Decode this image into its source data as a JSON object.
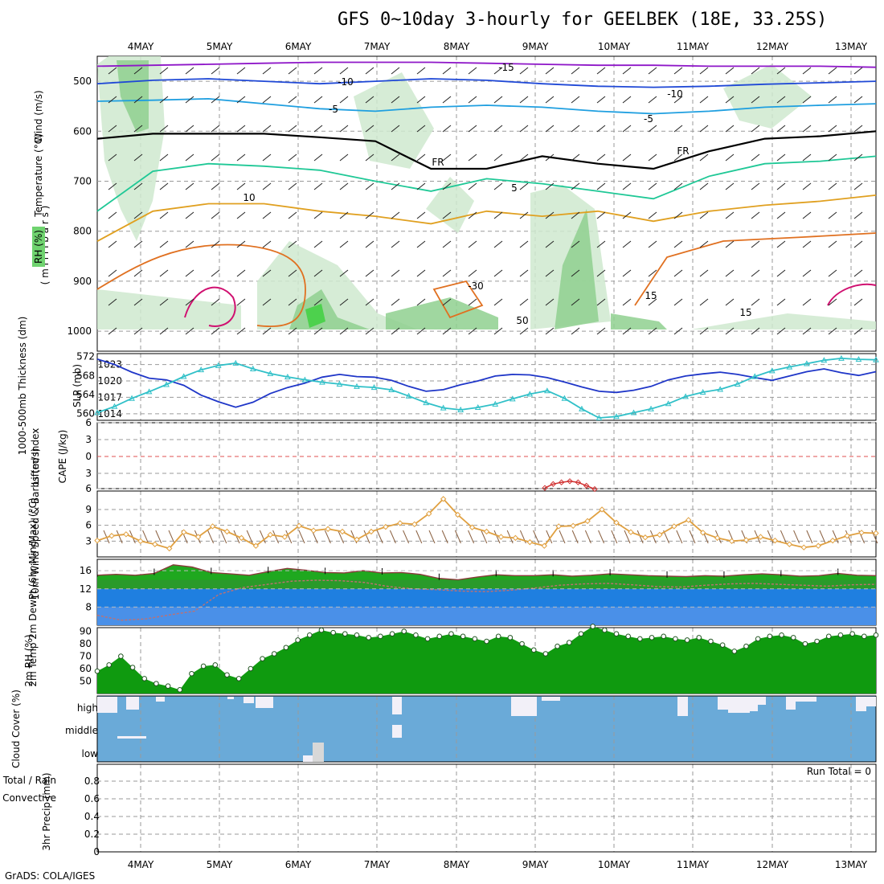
{
  "title": "GFS 0~10day 3-hourly for GEELBEK (18E, 33.25S)",
  "credit": "GrADS: COLA/IGES",
  "colors": {
    "rh_green": "#6fd36f",
    "temp_contours": [
      "#8e16c8",
      "#1f48d6",
      "#1f9fe0",
      "#1fc896",
      "#e0a020",
      "#e07020",
      "#d01070"
    ],
    "slp": "#1f36c8",
    "thickness": "#30c0c8",
    "wind": "#e0a040",
    "temp2m": "#1fa81f",
    "dew2m": "#1f7fe0",
    "cloud": "#6aaad8",
    "cape": "#d03030"
  },
  "chart_data": [
    {
      "type": "heatmap",
      "panel": "upper-air",
      "ylabels": [
        "W",
        "i",
        "n",
        "d"
      ],
      "ylabel_wind": "Wind (m/s)",
      "ylabel_temp": "Temperature (°C)",
      "ylabel_rh": "RH (%)",
      "ylabel_mb": "( m i l l i b a r s )",
      "x_ticks": [
        "4MAY",
        "5MAY",
        "6MAY",
        "7MAY",
        "8MAY",
        "9MAY",
        "10MAY",
        "11MAY",
        "12MAY",
        "13MAY"
      ],
      "y_ticks": [
        500,
        600,
        700,
        800,
        900,
        1000
      ],
      "ylim": [
        1040,
        450
      ],
      "contour_labels": [
        "-15",
        "-10",
        "-10",
        "-5",
        "-5",
        "FR",
        "FR",
        "5",
        "10",
        "15",
        "-30",
        "50",
        "15"
      ],
      "contours": [
        {
          "name": "-15",
          "y": [
            470,
            468,
            466,
            464,
            462,
            462,
            462,
            464,
            466,
            468,
            468,
            470,
            470,
            470,
            472
          ]
        },
        {
          "name": "-10",
          "y": [
            505,
            498,
            495,
            500,
            505,
            500,
            495,
            498,
            505,
            510,
            512,
            510,
            506,
            503,
            500
          ]
        },
        {
          "name": "-5",
          "y": [
            540,
            538,
            535,
            545,
            555,
            560,
            552,
            548,
            552,
            560,
            565,
            560,
            552,
            548,
            545
          ]
        },
        {
          "name": "FR",
          "y": [
            615,
            605,
            605,
            605,
            612,
            620,
            675,
            675,
            650,
            665,
            675,
            640,
            615,
            610,
            600
          ]
        },
        {
          "name": "5",
          "y": [
            760,
            680,
            665,
            670,
            678,
            700,
            720,
            695,
            705,
            720,
            735,
            690,
            665,
            660,
            650
          ]
        },
        {
          "name": "10",
          "y": [
            820,
            760,
            745,
            745,
            760,
            770,
            785,
            760,
            770,
            760,
            780,
            760,
            748,
            740,
            728
          ]
        }
      ],
      "rh_shading": "RH > 70% in low levels (900-1000mb) and near 500mb",
      "run_dates": [
        "4MAY",
        "13MAY"
      ]
    },
    {
      "type": "line",
      "panel": "slp-thickness",
      "ylabel_left": "1000-500mb Thickness (dm)",
      "ylabel_right": "SLP (mb)",
      "left_ticks": [
        560,
        564,
        568,
        572
      ],
      "right_ticks": [
        1014,
        1017,
        1020,
        1023
      ],
      "series": [
        {
          "name": "SLP (mb)",
          "values": [
            1024.0,
            1023.0,
            1021.6,
            1020.5,
            1020.2,
            1019.2,
            1017.4,
            1016.2,
            1015.2,
            1016.1,
            1017.7,
            1018.8,
            1019.6,
            1020.7,
            1021.2,
            1020.8,
            1020.7,
            1020.1,
            1019.0,
            1018.1,
            1018.4,
            1019.3,
            1020.0,
            1020.9,
            1021.2,
            1021.1,
            1020.6,
            1019.8,
            1018.9,
            1018.1,
            1017.9,
            1018.3,
            1019.0,
            1020.2,
            1020.9,
            1021.3,
            1021.6,
            1021.2,
            1020.6,
            1020.1,
            1020.9,
            1021.7,
            1022.2,
            1021.5,
            1021.0,
            1021.7
          ]
        },
        {
          "name": "Thickness",
          "values": [
            560.2,
            561.5,
            563.2,
            564.6,
            566.1,
            567.8,
            569.2,
            570.1,
            570.6,
            569.4,
            568.4,
            567.7,
            567.1,
            566.6,
            566.2,
            565.7,
            565.5,
            565.0,
            563.7,
            562.3,
            561.2,
            560.8,
            561.3,
            562.0,
            563.1,
            564.1,
            564.8,
            563.2,
            561.0,
            559.1,
            559.4,
            560.2,
            561.0,
            562.1,
            563.6,
            564.5,
            565.1,
            566.2,
            567.8,
            569.0,
            569.8,
            570.5,
            571.2,
            571.6,
            571.4,
            571.3
          ]
        }
      ]
    },
    {
      "type": "line",
      "panel": "li-cape",
      "ylabel_left": "Lifted Index",
      "ylabel_right": "CAPE (J/kg)",
      "ticks": [
        6,
        3,
        0,
        3,
        6
      ],
      "series": [
        {
          "name": "Lifted Index",
          "values": [
            5.6,
            4.9,
            4.6,
            4.4,
            4.6,
            5.2,
            5.8
          ]
        }
      ]
    },
    {
      "type": "line",
      "panel": "wind10m",
      "ylabel": "10m Wind Speed & Barbs (m/s)",
      "ticks": [
        3,
        6,
        9
      ],
      "series": [
        {
          "name": "10m Wind Speed",
          "values": [
            3.1,
            4.0,
            4.3,
            3.0,
            2.4,
            1.6,
            4.7,
            3.8,
            5.8,
            4.8,
            3.6,
            2.1,
            4.2,
            3.8,
            5.9,
            5.0,
            5.3,
            4.8,
            3.3,
            4.8,
            5.7,
            6.4,
            6.2,
            8.2,
            11.0,
            8.0,
            5.6,
            4.8,
            3.8,
            3.6,
            2.8,
            2.1,
            5.8,
            5.9,
            6.8,
            9.0,
            6.5,
            4.7,
            3.7,
            4.2,
            5.8,
            7.0,
            4.6,
            3.6,
            3.0,
            3.2,
            3.8,
            3.1,
            2.4,
            1.8,
            2.1,
            3.1,
            4.0,
            4.6,
            4.5
          ]
        }
      ]
    },
    {
      "type": "area",
      "panel": "temp2m",
      "ylabel": "2m Temp 2m DewPt (6hr Min/Max) (°C)",
      "ticks": [
        8,
        12,
        16
      ],
      "series": [
        {
          "name": "2m Temp",
          "values": [
            15.0,
            15.2,
            15.0,
            15.4,
            17.3,
            16.8,
            15.6,
            15.3,
            15.0,
            15.8,
            16.5,
            16.1,
            15.6,
            15.5,
            16.0,
            15.5,
            15.6,
            15.2,
            14.3,
            14.0,
            14.6,
            15.1,
            14.9,
            14.9,
            15.1,
            14.8,
            15.0,
            15.3,
            15.1,
            14.9,
            14.8,
            14.7,
            14.9,
            14.8,
            15.1,
            15.3,
            15.1,
            14.8,
            14.9,
            15.4,
            15.0,
            14.9
          ]
        },
        {
          "name": "2m DewPt",
          "values": [
            6.2,
            5.1,
            5.4,
            6.3,
            7.1,
            10.8,
            12.3,
            13.0,
            13.7,
            13.9,
            13.8,
            13.4,
            12.5,
            12.0,
            11.8,
            11.5,
            11.4,
            11.7,
            12.2,
            12.8,
            13.1,
            13.2,
            12.9,
            12.5,
            12.4,
            12.8,
            13.1,
            13.2,
            13.0,
            12.8,
            12.6,
            12.9,
            13.0
          ]
        }
      ]
    },
    {
      "type": "area",
      "panel": "rh2m",
      "ylabel": "2m RH (%)",
      "ticks": [
        50,
        60,
        70,
        80,
        90
      ],
      "series": [
        {
          "name": "2m RH",
          "values": [
            58,
            63,
            70,
            61,
            52,
            48,
            46,
            43,
            56,
            62,
            63,
            55,
            52,
            60,
            68,
            72,
            77,
            83,
            87,
            91,
            89,
            88,
            87,
            85,
            86,
            88,
            90,
            87,
            84,
            86,
            88,
            86,
            84,
            82,
            86,
            85,
            80,
            75,
            72,
            78,
            81,
            88,
            94,
            91,
            88,
            86,
            84,
            85,
            86,
            84,
            83,
            85,
            82,
            79,
            74,
            78,
            84,
            86,
            87,
            85,
            80,
            82,
            86,
            87,
            88,
            86,
            87
          ]
        }
      ]
    },
    {
      "type": "bar",
      "panel": "cloud",
      "ylabel": "Cloud Cover (%)",
      "levels": [
        "high",
        "middle",
        "low"
      ]
    },
    {
      "type": "bar",
      "panel": "precip",
      "ylabel_left": "3hr Precip (mm)",
      "ylabel_total": "Total / Rain",
      "ylabel_conv": "Convective",
      "ticks": [
        "0",
        "0.2",
        "0.4",
        "0.6",
        "0.8"
      ],
      "run_total": "Run Total = 0",
      "x_ticks": [
        "4MAY",
        "5MAY",
        "6MAY",
        "7MAY",
        "8MAY",
        "9MAY",
        "10MAY",
        "11MAY",
        "12MAY",
        "13MAY"
      ]
    }
  ]
}
